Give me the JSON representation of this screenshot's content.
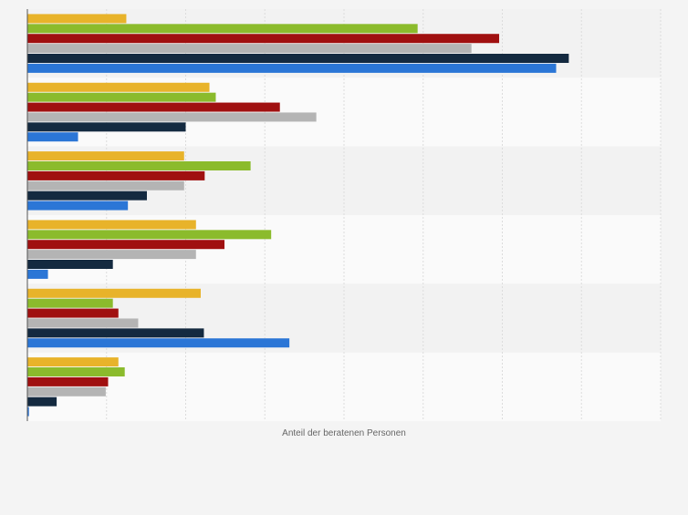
{
  "chart_data": {
    "type": "bar",
    "orientation": "horizontal",
    "xlabel": "Anteil der beratenen Personen",
    "ylabel": "",
    "xlim": [
      0,
      8
    ],
    "grid": true,
    "legend": "none",
    "categories": [
      "",
      "",
      "",
      "",
      "",
      ""
    ],
    "series": [
      {
        "color": "#e8b32a",
        "values": [
          1.25,
          2.3,
          1.98,
          2.13,
          2.19,
          1.15
        ]
      },
      {
        "color": "#8bbb2c",
        "values": [
          4.93,
          2.38,
          2.82,
          3.08,
          1.08,
          1.23
        ]
      },
      {
        "color": "#a01010",
        "values": [
          5.96,
          3.19,
          2.24,
          2.49,
          1.15,
          1.02
        ]
      },
      {
        "color": "#b4b4b4",
        "values": [
          5.61,
          3.65,
          1.98,
          2.13,
          1.4,
          0.99
        ]
      },
      {
        "color": "#142a40",
        "values": [
          6.84,
          2.0,
          1.51,
          1.08,
          2.23,
          0.37
        ]
      },
      {
        "color": "#2b76d6",
        "values": [
          6.68,
          0.64,
          1.27,
          0.26,
          3.31,
          0.02
        ]
      }
    ]
  }
}
